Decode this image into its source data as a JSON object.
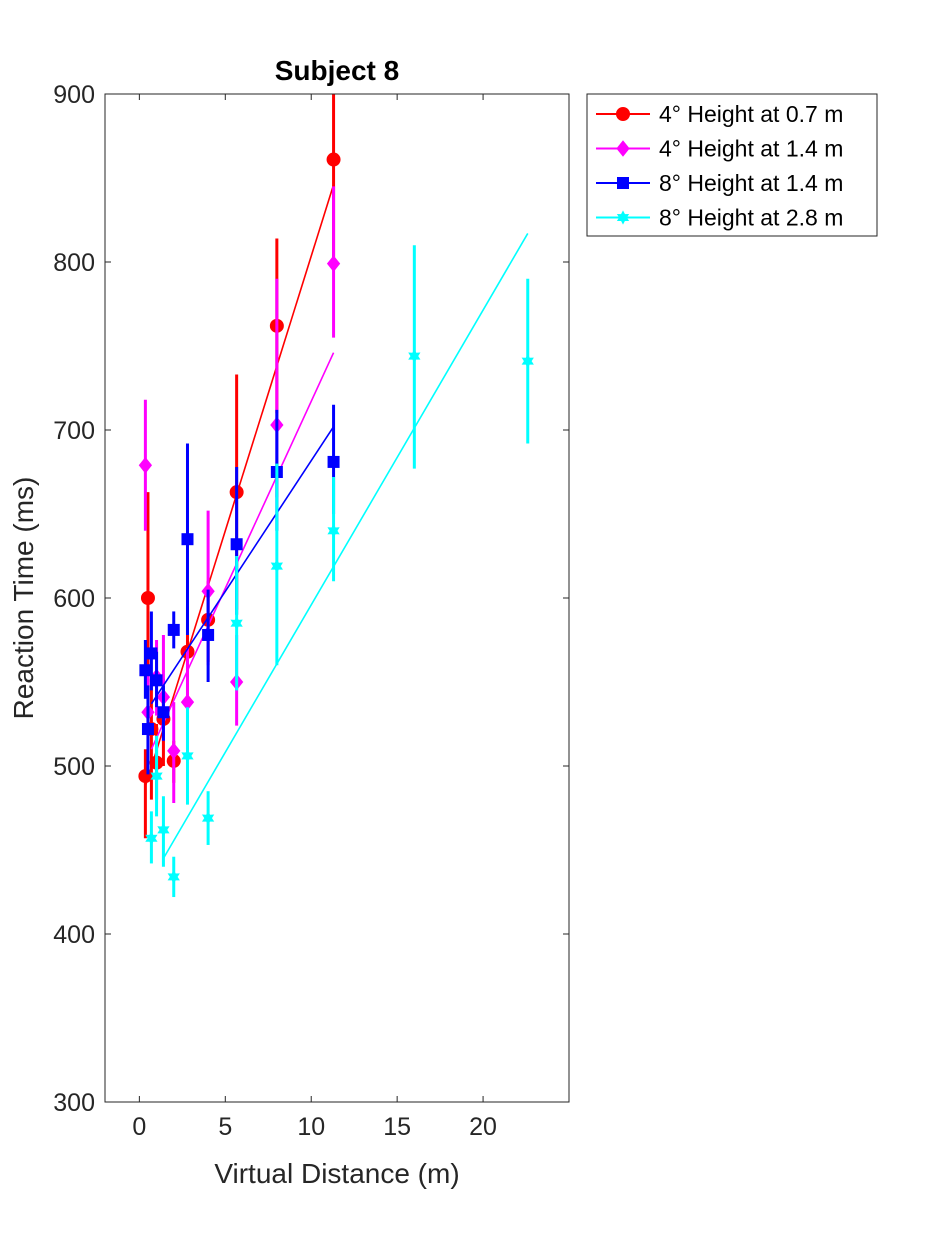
{
  "chart_data": {
    "type": "scatter",
    "title": "Subject 8",
    "xlabel": "Virtual Distance (m)",
    "ylabel": "Reaction Time (ms)",
    "xlim": [
      -2,
      25
    ],
    "ylim": [
      300,
      900
    ],
    "xticks": [
      0,
      5,
      10,
      15,
      20
    ],
    "yticks": [
      300,
      400,
      500,
      600,
      700,
      800,
      900
    ],
    "grid": false,
    "legend_position": "outside-top-right",
    "series": [
      {
        "name": "4° Height at 0.7 m",
        "color": "#ff0000",
        "marker": "circle",
        "points": [
          {
            "x": 0.35,
            "y": 494,
            "lo": 457,
            "hi": 510
          },
          {
            "x": 0.5,
            "y": 600,
            "lo": 550,
            "hi": 663
          },
          {
            "x": 0.7,
            "y": 522,
            "lo": 480,
            "hi": 552
          },
          {
            "x": 1.0,
            "y": 502,
            "lo": 480,
            "hi": 525
          },
          {
            "x": 1.4,
            "y": 528,
            "lo": 500,
            "hi": 552
          },
          {
            "x": 2.0,
            "y": 503,
            "lo": 490,
            "hi": 515
          },
          {
            "x": 2.8,
            "y": 568,
            "lo": 535,
            "hi": 595
          },
          {
            "x": 4.0,
            "y": 587,
            "lo": 562,
            "hi": 610
          },
          {
            "x": 5.66,
            "y": 663,
            "lo": 593,
            "hi": 733
          },
          {
            "x": 8.0,
            "y": 762,
            "lo": 710,
            "hi": 814
          },
          {
            "x": 11.3,
            "y": 861,
            "lo": 800,
            "hi": 915
          }
        ],
        "fit": [
          [
            0.35,
            488
          ],
          [
            11.3,
            846
          ]
        ]
      },
      {
        "name": "4° Height at 1.4 m",
        "color": "#ff00ff",
        "marker": "diamond",
        "points": [
          {
            "x": 0.35,
            "y": 679,
            "lo": 640,
            "hi": 718
          },
          {
            "x": 0.5,
            "y": 532,
            "lo": 510,
            "hi": 555
          },
          {
            "x": 1.0,
            "y": 553,
            "lo": 530,
            "hi": 575
          },
          {
            "x": 1.4,
            "y": 541,
            "lo": 515,
            "hi": 578
          },
          {
            "x": 2.0,
            "y": 509,
            "lo": 478,
            "hi": 538
          },
          {
            "x": 2.8,
            "y": 538,
            "lo": 510,
            "hi": 570
          },
          {
            "x": 4.0,
            "y": 604,
            "lo": 560,
            "hi": 652
          },
          {
            "x": 5.66,
            "y": 550,
            "lo": 524,
            "hi": 578
          },
          {
            "x": 8.0,
            "y": 703,
            "lo": 660,
            "hi": 790
          },
          {
            "x": 11.3,
            "y": 799,
            "lo": 755,
            "hi": 845
          }
        ],
        "fit": [
          [
            0.7,
            510
          ],
          [
            11.3,
            746
          ]
        ]
      },
      {
        "name": "8° Height at 1.4 m",
        "color": "#0000ff",
        "marker": "square",
        "points": [
          {
            "x": 0.35,
            "y": 557,
            "lo": 540,
            "hi": 575
          },
          {
            "x": 0.5,
            "y": 522,
            "lo": 495,
            "hi": 548
          },
          {
            "x": 0.7,
            "y": 567,
            "lo": 545,
            "hi": 592
          },
          {
            "x": 1.0,
            "y": 551,
            "lo": 535,
            "hi": 568
          },
          {
            "x": 1.4,
            "y": 532,
            "lo": 515,
            "hi": 548
          },
          {
            "x": 2.0,
            "y": 581,
            "lo": 570,
            "hi": 592
          },
          {
            "x": 2.8,
            "y": 635,
            "lo": 578,
            "hi": 692
          },
          {
            "x": 4.0,
            "y": 578,
            "lo": 550,
            "hi": 605
          },
          {
            "x": 5.66,
            "y": 632,
            "lo": 590,
            "hi": 678
          },
          {
            "x": 8.0,
            "y": 675,
            "lo": 640,
            "hi": 712
          },
          {
            "x": 11.3,
            "y": 681,
            "lo": 650,
            "hi": 715
          }
        ],
        "fit": [
          [
            0.7,
            537
          ],
          [
            11.3,
            702
          ]
        ]
      },
      {
        "name": "8° Height at 2.8 m",
        "color": "#00ffff",
        "marker": "hexagram",
        "points": [
          {
            "x": 0.7,
            "y": 457,
            "lo": 442,
            "hi": 473
          },
          {
            "x": 1.0,
            "y": 494,
            "lo": 470,
            "hi": 518
          },
          {
            "x": 1.4,
            "y": 462,
            "lo": 440,
            "hi": 482
          },
          {
            "x": 2.0,
            "y": 434,
            "lo": 422,
            "hi": 446
          },
          {
            "x": 2.8,
            "y": 506,
            "lo": 477,
            "hi": 535
          },
          {
            "x": 4.0,
            "y": 469,
            "lo": 453,
            "hi": 485
          },
          {
            "x": 5.66,
            "y": 585,
            "lo": 545,
            "hi": 625
          },
          {
            "x": 8.0,
            "y": 619,
            "lo": 560,
            "hi": 680
          },
          {
            "x": 11.3,
            "y": 640,
            "lo": 610,
            "hi": 672
          },
          {
            "x": 16.0,
            "y": 744,
            "lo": 677,
            "hi": 810
          },
          {
            "x": 22.6,
            "y": 741,
            "lo": 692,
            "hi": 790
          }
        ],
        "fit": [
          [
            1.4,
            445
          ],
          [
            22.6,
            817
          ]
        ]
      }
    ]
  }
}
